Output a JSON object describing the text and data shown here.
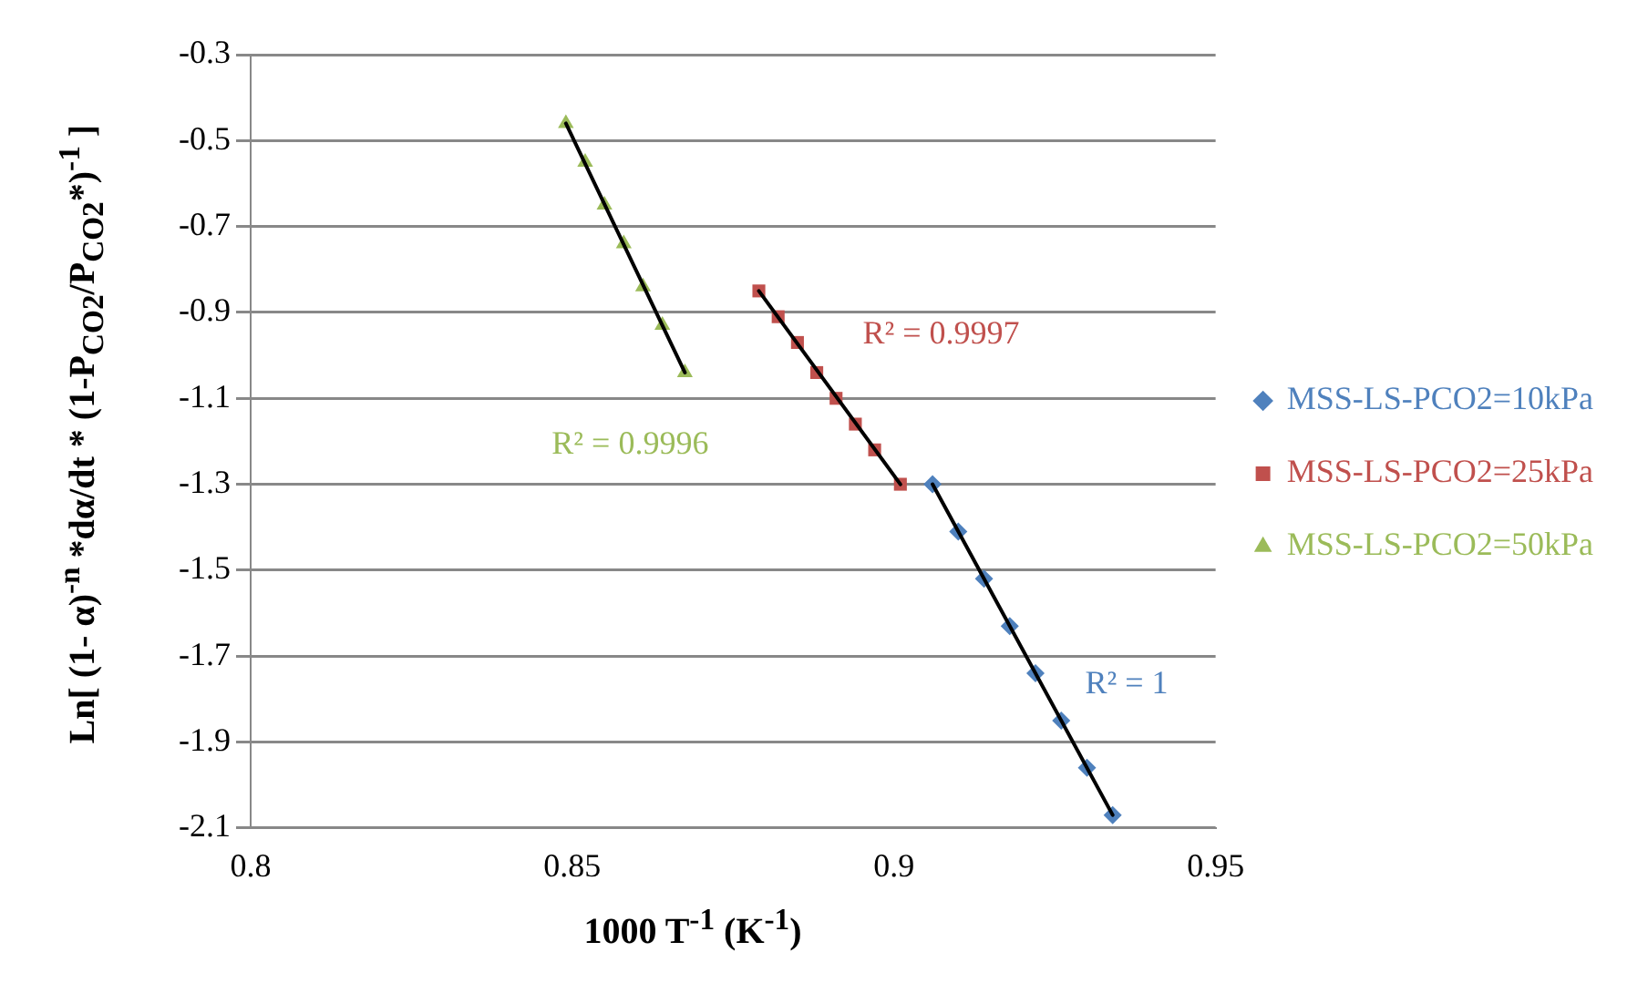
{
  "chart_data": {
    "type": "scatter",
    "xlabel": "1000 T$^{-1}$ (K$^{-1}$)",
    "ylabel": "Ln[ (1- α)$^{-n}$ *dα/dt * (1-P$_{CO2}$/P$_{CO2}$*)$^{-1}$ ]",
    "xlim": [
      0.8,
      0.95
    ],
    "xticks": [
      0.8,
      0.85,
      0.9,
      0.95
    ],
    "ylim": [
      -2.1,
      -0.3
    ],
    "yticks": [
      -2.1,
      -1.9,
      -1.7,
      -1.5,
      -1.3,
      -1.1,
      -0.9,
      -0.7,
      -0.5,
      -0.3
    ],
    "grid": "y",
    "legend": "right",
    "series": [
      {
        "name": "MSS-LS-PCO2=10kPa",
        "color": "#4f81bd",
        "marker": "diamond",
        "x": [
          0.906,
          0.91,
          0.914,
          0.918,
          0.922,
          0.926,
          0.93,
          0.934
        ],
        "values": [
          -1.3,
          -1.41,
          -1.52,
          -1.63,
          -1.74,
          -1.85,
          -1.96,
          -2.07
        ]
      },
      {
        "name": "MSS-LS-PCO2=25kPa",
        "color": "#c0504d",
        "marker": "square",
        "x": [
          0.879,
          0.882,
          0.885,
          0.888,
          0.891,
          0.894,
          0.897,
          0.901
        ],
        "values": [
          -0.85,
          -0.91,
          -0.97,
          -1.04,
          -1.1,
          -1.16,
          -1.22,
          -1.3
        ]
      },
      {
        "name": "MSS-LS-PCO2=50kPa",
        "color": "#9bbb59",
        "marker": "triangle",
        "x": [
          0.849,
          0.852,
          0.855,
          0.858,
          0.861,
          0.864,
          0.8675
        ],
        "values": [
          -0.46,
          -0.55,
          -0.65,
          -0.74,
          -0.84,
          -0.93,
          -1.04
        ]
      },
      {
        "type": "line",
        "color": "#000000",
        "marker": "none",
        "x": [
          0.906,
          0.934
        ],
        "values": [
          -1.3,
          -2.07
        ]
      },
      {
        "type": "line",
        "color": "#000000",
        "marker": "none",
        "x": [
          0.879,
          0.901
        ],
        "values": [
          -0.85,
          -1.3
        ]
      },
      {
        "type": "line",
        "color": "#000000",
        "marker": "none",
        "x": [
          0.849,
          0.8675
        ],
        "values": [
          -0.46,
          -1.04
        ]
      }
    ],
    "annotations": [
      "R² = 1",
      "R² = 0.9997",
      "R² = 0.9996"
    ]
  }
}
